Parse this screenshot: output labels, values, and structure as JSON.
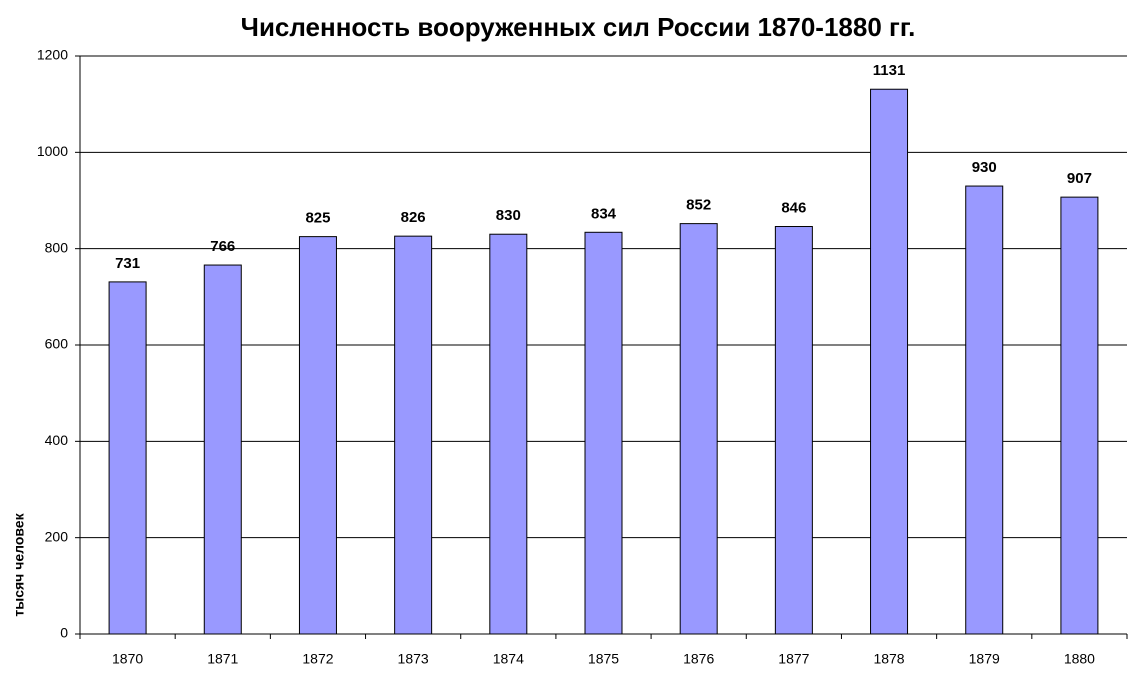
{
  "chart_data": {
    "type": "bar",
    "title": "Численность вооруженных сил России 1870-1880 гг.",
    "y_label": "тысяч человек",
    "categories": [
      "1870",
      "1871",
      "1872",
      "1873",
      "1874",
      "1875",
      "1876",
      "1877",
      "1878",
      "1879",
      "1880"
    ],
    "values": [
      731,
      766,
      825,
      826,
      830,
      834,
      852,
      846,
      1131,
      930,
      907
    ],
    "color": "#9999ff",
    "ylim": [
      0,
      1200
    ],
    "yticks": [
      0,
      200,
      400,
      600,
      800,
      1000,
      1200
    ],
    "grid": true
  }
}
